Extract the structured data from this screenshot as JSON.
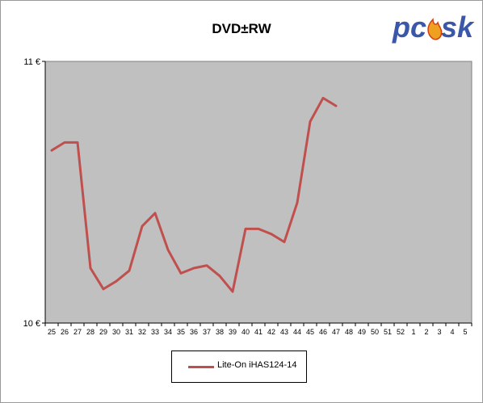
{
  "colors": {
    "plot_bg": "#c0c0c0",
    "series": "#c0504d",
    "logo_blue": "#3b57a8",
    "logo_flame": "#f0a020"
  },
  "logo": {
    "text_left": "pc",
    "text_right": "sk"
  },
  "chart_data": {
    "type": "line",
    "title": "DVD±RW",
    "xlabel": "",
    "ylabel": "",
    "y_tick_labels": [
      "11 €",
      "10 €"
    ],
    "ylim": [
      10,
      11
    ],
    "grid": false,
    "legend_position": "bottom",
    "categories": [
      "25",
      "26",
      "27",
      "28",
      "29",
      "30",
      "31",
      "32",
      "33",
      "34",
      "35",
      "36",
      "37",
      "38",
      "39",
      "40",
      "41",
      "42",
      "43",
      "44",
      "45",
      "46",
      "47",
      "48",
      "49",
      "50",
      "51",
      "52",
      "1",
      "2",
      "3",
      "4",
      "5"
    ],
    "series": [
      {
        "name": "Lite-On  iHAS124-14",
        "values": [
          10.66,
          10.69,
          10.69,
          10.21,
          10.13,
          10.16,
          10.2,
          10.37,
          10.42,
          10.28,
          10.19,
          10.21,
          10.22,
          10.18,
          10.12,
          10.36,
          10.36,
          10.34,
          10.31,
          10.46,
          10.77,
          10.86,
          10.83,
          null,
          null,
          null,
          null,
          null,
          null,
          null,
          null,
          null,
          null
        ]
      }
    ]
  }
}
